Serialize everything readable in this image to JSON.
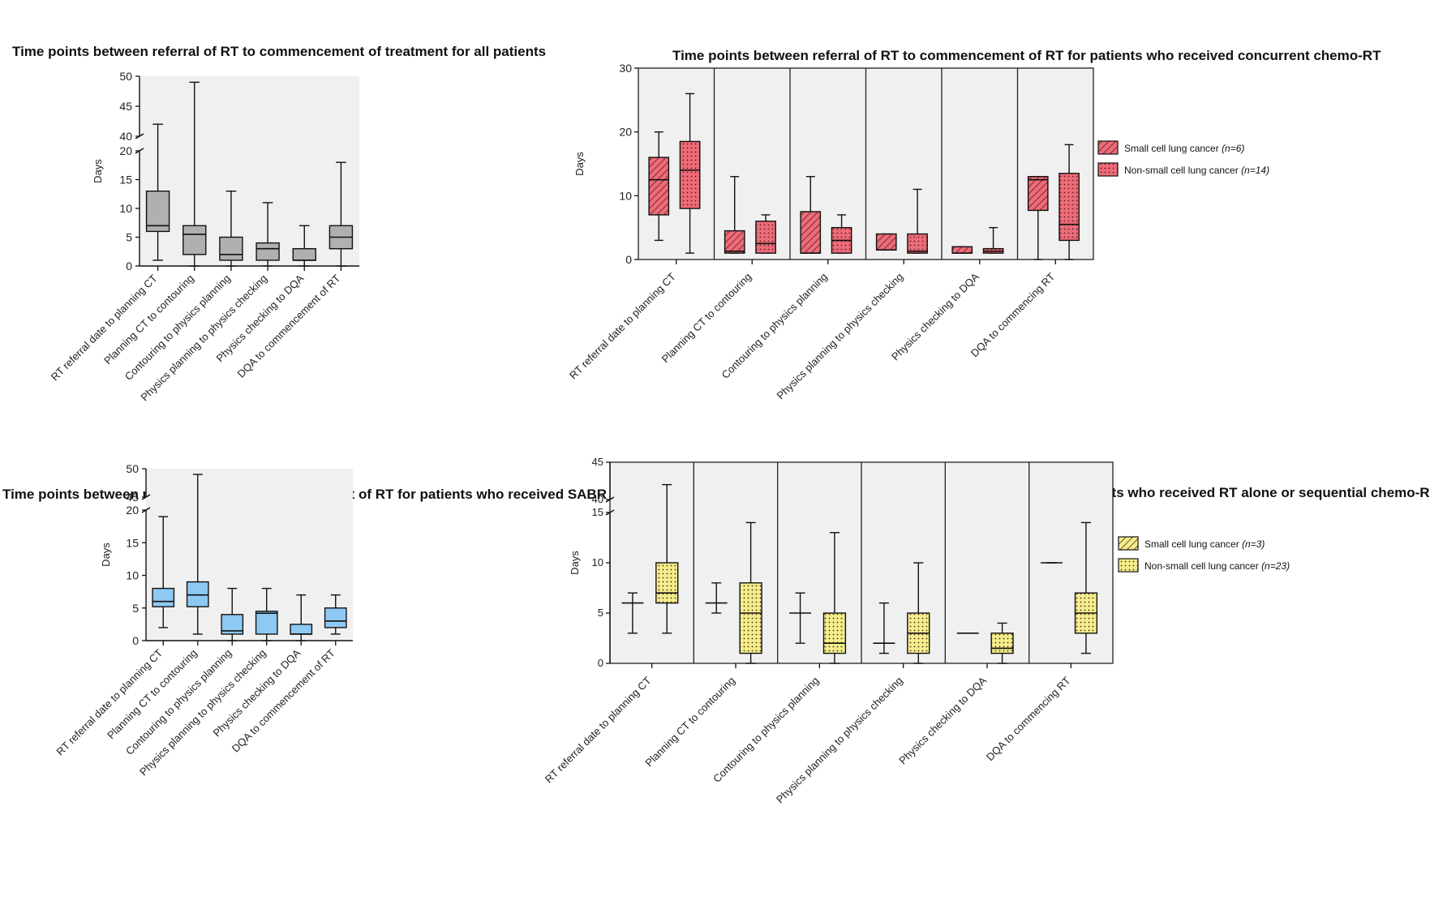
{
  "chart_data": [
    {
      "id": "all",
      "type": "box",
      "title": "Time points between referral of RT to commencement of treatment for all patients",
      "ylabel": "Days",
      "axis_break": {
        "lower": [
          0,
          20
        ],
        "upper": [
          40,
          50
        ]
      },
      "lower_ticks": [
        0,
        5,
        10,
        15,
        20
      ],
      "upper_ticks": [
        40,
        45,
        50
      ],
      "categories": [
        "RT referral date to planning CT",
        "Planning CT to contouring",
        "Contouring to physics planning",
        "Physics planning to physics checking",
        "Physics checking to DQA",
        "DQA to commencement of RT"
      ],
      "series": [
        {
          "name": "",
          "color": "#b0b0b0",
          "pattern": "none",
          "boxes": [
            {
              "min": 1,
              "q1": 6,
              "median": 7,
              "q3": 13,
              "max": 42
            },
            {
              "min": 0,
              "q1": 2,
              "median": 5.5,
              "q3": 7,
              "max": 49
            },
            {
              "min": 0,
              "q1": 1,
              "median": 2,
              "q3": 5,
              "max": 13
            },
            {
              "min": 0,
              "q1": 1,
              "median": 3,
              "q3": 4,
              "max": 11
            },
            {
              "min": 0,
              "q1": 1,
              "median": 1,
              "q3": 3,
              "max": 7
            },
            {
              "min": 0,
              "q1": 3,
              "median": 5,
              "q3": 7,
              "max": 18
            }
          ]
        }
      ]
    },
    {
      "id": "concurrent",
      "type": "box",
      "title": "Time points between referral of RT to commencement of RT for patients who received concurrent chemo-RT",
      "ylabel": "Days",
      "ylim": [
        0,
        30
      ],
      "ticks": [
        0,
        10,
        20,
        30
      ],
      "categories": [
        "RT referral date to planning CT",
        "Planning CT to contouring",
        "Contouring to physics planning",
        "Physics planning to physics checking",
        "Physics checking to DQA",
        "DQA to commencing RT"
      ],
      "series": [
        {
          "name": "Small cell lung cancer",
          "n_label": "(n=6)",
          "color": "#ee6b78",
          "pattern": "hatch",
          "boxes": [
            {
              "min": 3,
              "q1": 7,
              "median": 12.5,
              "q3": 16,
              "max": 20
            },
            {
              "min": 1,
              "q1": 1,
              "median": 1.3,
              "q3": 4.5,
              "max": 13
            },
            {
              "min": 1,
              "q1": 1,
              "median": 1,
              "q3": 7.5,
              "max": 13
            },
            {
              "min": 1.5,
              "q1": 1.5,
              "median": 1.5,
              "q3": 4,
              "max": 4
            },
            {
              "min": 1,
              "q1": 1,
              "median": 1,
              "q3": 2,
              "max": 2
            },
            {
              "min": 0,
              "q1": 7.7,
              "median": 12.5,
              "q3": 13,
              "max": 13
            }
          ]
        },
        {
          "name": "Non-small cell lung cancer",
          "n_label": "(n=14)",
          "color": "#ee6b78",
          "pattern": "dots",
          "boxes": [
            {
              "min": 1,
              "q1": 8,
              "median": 14,
              "q3": 18.5,
              "max": 26
            },
            {
              "min": 1,
              "q1": 1,
              "median": 2.5,
              "q3": 6,
              "max": 7
            },
            {
              "min": 1,
              "q1": 1,
              "median": 3,
              "q3": 5,
              "max": 7
            },
            {
              "min": 1,
              "q1": 1,
              "median": 1.3,
              "q3": 4,
              "max": 11
            },
            {
              "min": 1,
              "q1": 1,
              "median": 1.3,
              "q3": 1.7,
              "max": 5
            },
            {
              "min": 0,
              "q1": 3,
              "median": 5.5,
              "q3": 13.5,
              "max": 18
            }
          ]
        }
      ]
    },
    {
      "id": "sabr",
      "type": "box",
      "title": "Time points between referral of RT to commencement of RT for patients who received SABR",
      "ylabel": "Days",
      "axis_break": {
        "lower": [
          0,
          20
        ],
        "upper": [
          45,
          50
        ]
      },
      "lower_ticks": [
        0,
        5,
        10,
        15,
        20
      ],
      "upper_ticks": [
        45,
        50
      ],
      "categories": [
        "RT referral date to planning CT",
        "Planning CT to contouring",
        "Contouring to physics planning",
        "Physics planning to physics checking",
        "Physics checking to DQA",
        "DQA to commencement of RT"
      ],
      "series": [
        {
          "name": "",
          "color": "#8ec9f4",
          "pattern": "none",
          "boxes": [
            {
              "min": 2,
              "q1": 5.2,
              "median": 6,
              "q3": 8,
              "max": 19
            },
            {
              "min": 1,
              "q1": 5.2,
              "median": 7,
              "q3": 9,
              "max": 49
            },
            {
              "min": 0,
              "q1": 1,
              "median": 1.5,
              "q3": 4,
              "max": 8
            },
            {
              "min": 0,
              "q1": 1,
              "median": 4.2,
              "q3": 4.5,
              "max": 8
            },
            {
              "min": 0,
              "q1": 1,
              "median": 1,
              "q3": 2.5,
              "max": 7
            },
            {
              "min": 1,
              "q1": 2,
              "median": 3,
              "q3": 5,
              "max": 7
            }
          ]
        }
      ]
    },
    {
      "id": "sequential",
      "type": "box",
      "title": "Time points between referral of RT to commencement of RT for patients who received RT alone or sequential chemo-RT",
      "ylabel": "Days",
      "axis_break": {
        "lower": [
          0,
          15
        ],
        "upper": [
          40,
          45
        ]
      },
      "lower_ticks": [
        0,
        5,
        10,
        15
      ],
      "upper_ticks": [
        40,
        45
      ],
      "categories": [
        "RT referral date to planning CT",
        "Planning CT to contouring",
        "Contouring to physics planning",
        "Physics planning to physics checking",
        "Physics checking to DQA",
        "DQA to commencing RT"
      ],
      "series": [
        {
          "name": "Small cell lung cancer",
          "n_label": "(n=3)",
          "color": "#f2ee8a",
          "pattern": "hatch",
          "boxes": [
            {
              "min": 3,
              "q1": 6,
              "median": 6,
              "q3": 6,
              "max": 7
            },
            {
              "min": 5,
              "q1": 6,
              "median": 6,
              "q3": 6,
              "max": 8
            },
            {
              "min": 2,
              "q1": 5,
              "median": 5,
              "q3": 5,
              "max": 7
            },
            {
              "min": 1,
              "q1": 2,
              "median": 2,
              "q3": 2,
              "max": 6
            },
            {
              "min": 3,
              "q1": 3,
              "median": 3,
              "q3": 3,
              "max": 3
            },
            {
              "min": 10,
              "q1": 10,
              "median": 10,
              "q3": 10,
              "max": 10
            }
          ]
        },
        {
          "name": "Non-small cell lung cancer",
          "n_label": "(n=23)",
          "color": "#f2ee8a",
          "pattern": "dots",
          "boxes": [
            {
              "min": 3,
              "q1": 6,
              "median": 7,
              "q3": 10,
              "max": 42
            },
            {
              "min": 0,
              "q1": 1,
              "median": 5,
              "q3": 8,
              "max": 14
            },
            {
              "min": 0,
              "q1": 1,
              "median": 2,
              "q3": 5,
              "max": 13
            },
            {
              "min": 0,
              "q1": 1,
              "median": 3,
              "q3": 5,
              "max": 10
            },
            {
              "min": 0,
              "q1": 1,
              "median": 1.5,
              "q3": 3,
              "max": 4
            },
            {
              "min": 1,
              "q1": 3,
              "median": 5,
              "q3": 7,
              "max": 14
            }
          ]
        }
      ]
    }
  ]
}
